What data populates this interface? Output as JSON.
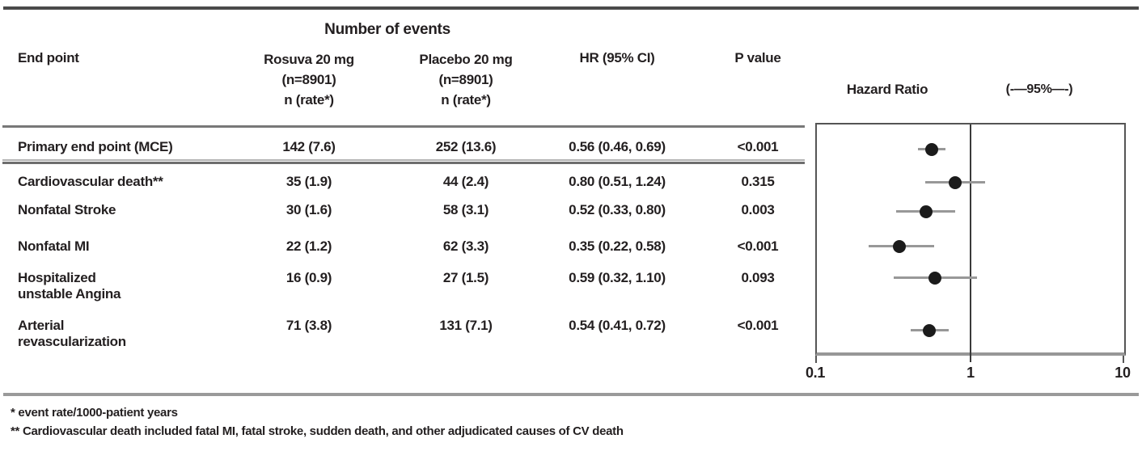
{
  "figure": {
    "column_group_header": "Number of events",
    "columns": {
      "end_point": "End point",
      "rosuva": [
        "Rosuva 20 mg",
        "(n=8901)",
        "n (rate*)"
      ],
      "placebo": [
        "Placebo 20 mg",
        "(n=8901)",
        "n (rate*)"
      ],
      "hr": "HR (95% CI)",
      "p": "P value"
    },
    "plot": {
      "title": "Hazard Ratio",
      "ci_annotation": "(-—95%—-)",
      "axis_tick_labels": [
        "0.1",
        "1",
        "10"
      ]
    },
    "footnotes": [
      "* event rate/1000-patient years",
      "** Cardiovascular death included fatal MI, fatal stroke, sudden death, and other adjudicated causes of CV death"
    ]
  },
  "rows": [
    {
      "endpoint": "Primary end point (MCE)",
      "rosuva": "142 (7.6)",
      "placebo": "252 (13.6)",
      "hr_ci": "0.56 (0.46, 0.69)",
      "p": "<0.001"
    },
    {
      "endpoint": "Cardiovascular death**",
      "rosuva": "35 (1.9)",
      "placebo": "44 (2.4)",
      "hr_ci": "0.80 (0.51, 1.24)",
      "p": "0.315"
    },
    {
      "endpoint": "Nonfatal Stroke",
      "rosuva": "30 (1.6)",
      "placebo": "58 (3.1)",
      "hr_ci": "0.52 (0.33, 0.80)",
      "p": "0.003"
    },
    {
      "endpoint": "Nonfatal MI",
      "rosuva": "22 (1.2)",
      "placebo": "62 (3.3)",
      "hr_ci": "0.35 (0.22, 0.58)",
      "p": "<0.001"
    },
    {
      "endpoint": "Hospitalized\nunstable Angina",
      "rosuva": "16 (0.9)",
      "placebo": "27 (1.5)",
      "hr_ci": "0.59 (0.32, 1.10)",
      "p": "0.093"
    },
    {
      "endpoint": "Arterial\nrevascularization",
      "rosuva": "71 (3.8)",
      "placebo": "131 (7.1)",
      "hr_ci": "0.54 (0.41, 0.72)",
      "p": "<0.001"
    }
  ],
  "chart_data": {
    "type": "scatter",
    "subtype": "forest-plot",
    "title": "Hazard Ratio",
    "xlabel": "",
    "ylabel": "",
    "x_axis": {
      "scale": "log",
      "min": 0.1,
      "max": 10,
      "ticks": [
        0.1,
        1,
        10
      ],
      "reference_line": 1
    },
    "legend_annotation": "(-—95%—-)",
    "series": [
      {
        "label": "Primary end point (MCE)",
        "hr": 0.56,
        "ci_low": 0.46,
        "ci_high": 0.69,
        "p": "<0.001"
      },
      {
        "label": "Cardiovascular death**",
        "hr": 0.8,
        "ci_low": 0.51,
        "ci_high": 1.24,
        "p": "0.315"
      },
      {
        "label": "Nonfatal Stroke",
        "hr": 0.52,
        "ci_low": 0.33,
        "ci_high": 0.8,
        "p": "0.003"
      },
      {
        "label": "Nonfatal MI",
        "hr": 0.35,
        "ci_low": 0.22,
        "ci_high": 0.58,
        "p": "<0.001"
      },
      {
        "label": "Hospitalized unstable Angina",
        "hr": 0.59,
        "ci_low": 0.32,
        "ci_high": 1.1,
        "p": "0.093"
      },
      {
        "label": "Arterial revascularization",
        "hr": 0.54,
        "ci_low": 0.41,
        "ci_high": 0.72,
        "p": "<0.001"
      }
    ]
  },
  "colors": {
    "text": "#231f20",
    "marker": "#1b1b1b",
    "ci_line": "#989898",
    "rule_dark": "#4a4a4a",
    "rule_mid": "#787878",
    "rule_light": "#9a9a9a"
  }
}
